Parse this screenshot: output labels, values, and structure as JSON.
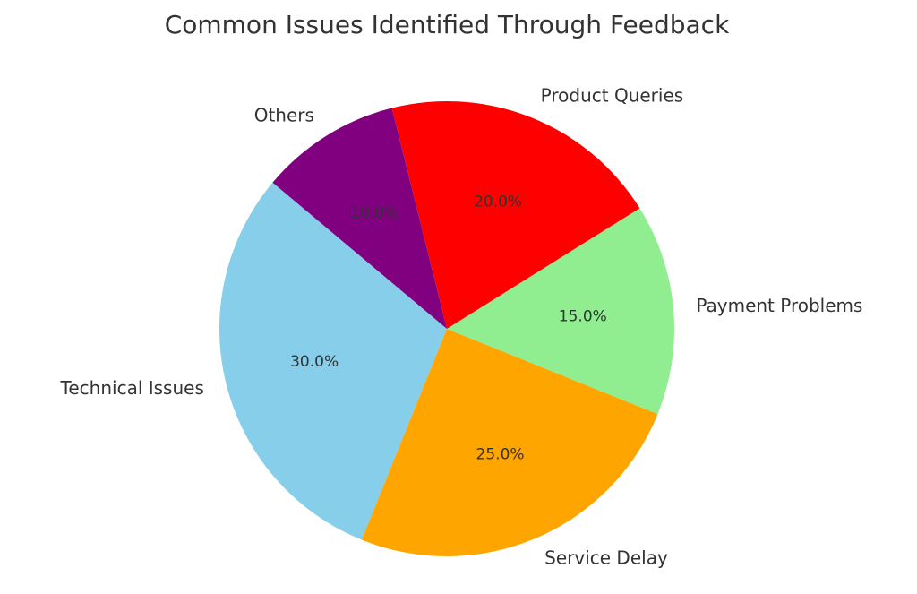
{
  "chart_data": {
    "type": "pie",
    "title": "Common Issues Identified Through Feedback",
    "categories": [
      "Technical Issues",
      "Service Delay",
      "Payment Problems",
      "Product Queries",
      "Others"
    ],
    "values": [
      30,
      25,
      15,
      20,
      10
    ],
    "percent_labels": [
      "30.0%",
      "25.0%",
      "15.0%",
      "20.0%",
      "10.0%"
    ],
    "colors": [
      "#87CEEB",
      "#FFA500",
      "#90EE90",
      "#FF0000",
      "#800080"
    ],
    "start_angle_deg": 140,
    "direction": "counterclockwise"
  }
}
